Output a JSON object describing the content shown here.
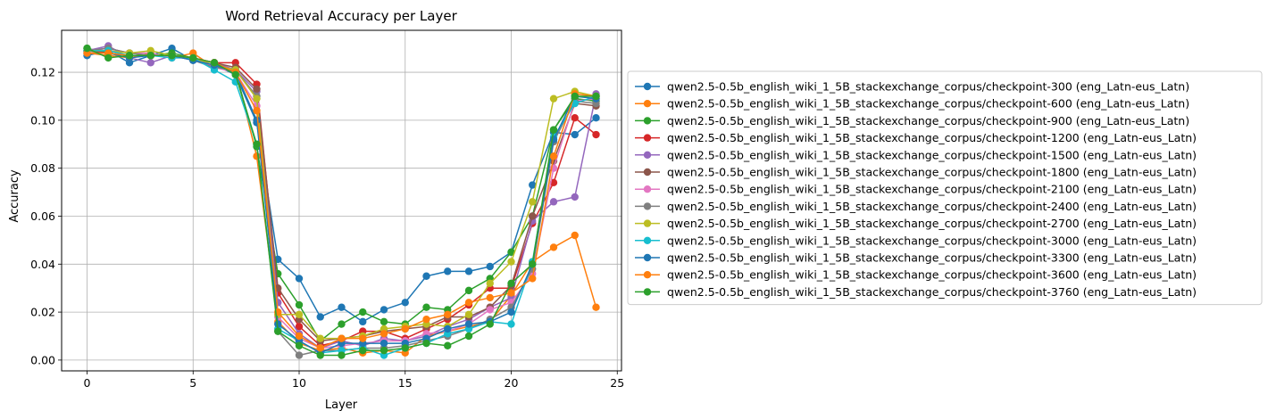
{
  "chart_data": {
    "type": "line",
    "title": "Word Retrieval Accuracy per Layer",
    "xlabel": "Layer",
    "ylabel": "Accuracy",
    "xlim": [
      -1.2,
      25.2
    ],
    "ylim": [
      -0.0045,
      0.1375
    ],
    "xticks": [
      0,
      5,
      10,
      15,
      20,
      25
    ],
    "yticks": [
      0.0,
      0.02,
      0.04,
      0.06,
      0.08,
      0.1,
      0.12
    ],
    "ytick_labels": [
      "0.00",
      "0.02",
      "0.04",
      "0.06",
      "0.08",
      "0.10",
      "0.12"
    ],
    "grid": true,
    "legend_position": "outside-right",
    "x": [
      0,
      1,
      2,
      3,
      4,
      5,
      6,
      7,
      8,
      9,
      10,
      11,
      12,
      13,
      14,
      15,
      16,
      17,
      18,
      19,
      20,
      21,
      22,
      23,
      24
    ],
    "series": [
      {
        "name": "qwen2.5-0.5b_english_wiki_1_5B_stackexchange_corpus/checkpoint-300 (eng_Latn-eus_Latn)",
        "color": "#1f77b4",
        "values": [
          0.127,
          0.129,
          0.124,
          0.127,
          0.13,
          0.125,
          0.123,
          0.119,
          0.099,
          0.042,
          0.034,
          0.018,
          0.022,
          0.016,
          0.021,
          0.024,
          0.035,
          0.037,
          0.037,
          0.039,
          0.045,
          0.073,
          0.095,
          0.094,
          0.101
        ]
      },
      {
        "name": "qwen2.5-0.5b_english_wiki_1_5B_stackexchange_corpus/checkpoint-600 (eng_Latn-eus_Latn)",
        "color": "#ff7f0e",
        "values": [
          0.128,
          0.127,
          0.126,
          0.128,
          0.126,
          0.128,
          0.122,
          0.121,
          0.085,
          0.016,
          0.007,
          0.004,
          0.005,
          0.003,
          0.004,
          0.003,
          0.01,
          0.012,
          0.014,
          0.016,
          0.027,
          0.041,
          0.047,
          0.052,
          0.022
        ]
      },
      {
        "name": "qwen2.5-0.5b_english_wiki_1_5B_stackexchange_corpus/checkpoint-900 (eng_Latn-eus_Latn)",
        "color": "#2ca02c",
        "values": [
          0.13,
          0.128,
          0.127,
          0.127,
          0.128,
          0.126,
          0.124,
          0.12,
          0.089,
          0.036,
          0.023,
          0.008,
          0.015,
          0.02,
          0.016,
          0.015,
          0.022,
          0.021,
          0.029,
          0.034,
          0.045,
          0.06,
          0.096,
          0.109,
          0.108
        ]
      },
      {
        "name": "qwen2.5-0.5b_english_wiki_1_5B_stackexchange_corpus/checkpoint-1200 (eng_Latn-eus_Latn)",
        "color": "#d62728",
        "values": [
          0.129,
          0.128,
          0.127,
          0.127,
          0.127,
          0.126,
          0.124,
          0.124,
          0.115,
          0.028,
          0.014,
          0.006,
          0.008,
          0.012,
          0.012,
          0.009,
          0.013,
          0.017,
          0.023,
          0.03,
          0.03,
          0.057,
          0.074,
          0.101,
          0.094
        ]
      },
      {
        "name": "qwen2.5-0.5b_english_wiki_1_5B_stackexchange_corpus/checkpoint-1500 (eng_Latn-eus_Latn)",
        "color": "#9467bd",
        "values": [
          0.129,
          0.131,
          0.126,
          0.124,
          0.127,
          0.126,
          0.124,
          0.121,
          0.112,
          0.024,
          0.011,
          0.005,
          0.008,
          0.006,
          0.009,
          0.008,
          0.01,
          0.014,
          0.017,
          0.022,
          0.026,
          0.058,
          0.066,
          0.068,
          0.111
        ]
      },
      {
        "name": "qwen2.5-0.5b_english_wiki_1_5B_stackexchange_corpus/checkpoint-1800 (eng_Latn-eus_Latn)",
        "color": "#8c564b",
        "values": [
          0.129,
          0.13,
          0.128,
          0.127,
          0.127,
          0.126,
          0.124,
          0.122,
          0.113,
          0.03,
          0.017,
          0.008,
          0.009,
          0.01,
          0.012,
          0.013,
          0.014,
          0.018,
          0.018,
          0.022,
          0.031,
          0.06,
          0.083,
          0.107,
          0.106
        ]
      },
      {
        "name": "qwen2.5-0.5b_english_wiki_1_5B_stackexchange_corpus/checkpoint-2100 (eng_Latn-eus_Latn)",
        "color": "#e377c2",
        "values": [
          0.129,
          0.13,
          0.128,
          0.128,
          0.126,
          0.126,
          0.122,
          0.12,
          0.106,
          0.018,
          0.009,
          0.005,
          0.006,
          0.007,
          0.008,
          0.008,
          0.011,
          0.012,
          0.015,
          0.021,
          0.024,
          0.036,
          0.08,
          0.108,
          0.109
        ]
      },
      {
        "name": "qwen2.5-0.5b_english_wiki_1_5B_stackexchange_corpus/checkpoint-2400 (eng_Latn-eus_Latn)",
        "color": "#7f7f7f",
        "values": [
          0.129,
          0.13,
          0.128,
          0.127,
          0.127,
          0.125,
          0.122,
          0.121,
          0.11,
          0.012,
          0.002,
          0.004,
          0.004,
          0.005,
          0.005,
          0.006,
          0.008,
          0.01,
          0.013,
          0.017,
          0.022,
          0.038,
          0.091,
          0.108,
          0.107
        ]
      },
      {
        "name": "qwen2.5-0.5b_english_wiki_1_5B_stackexchange_corpus/checkpoint-2700 (eng_Latn-eus_Latn)",
        "color": "#bcbd22",
        "values": [
          0.129,
          0.129,
          0.128,
          0.129,
          0.127,
          0.126,
          0.123,
          0.121,
          0.109,
          0.019,
          0.019,
          0.009,
          0.009,
          0.01,
          0.013,
          0.014,
          0.015,
          0.014,
          0.019,
          0.032,
          0.041,
          0.066,
          0.109,
          0.112,
          0.11
        ]
      },
      {
        "name": "qwen2.5-0.5b_english_wiki_1_5B_stackexchange_corpus/checkpoint-3000 (eng_Latn-eus_Latn)",
        "color": "#17becf",
        "values": [
          0.129,
          0.129,
          0.127,
          0.127,
          0.126,
          0.126,
          0.121,
          0.116,
          0.09,
          0.013,
          0.008,
          0.003,
          0.004,
          0.005,
          0.002,
          0.005,
          0.007,
          0.011,
          0.013,
          0.016,
          0.015,
          0.041,
          0.093,
          0.107,
          0.11
        ]
      },
      {
        "name": "qwen2.5-0.5b_english_wiki_1_5B_stackexchange_corpus/checkpoint-3300 (eng_Latn-eus_Latn)",
        "color": "#1f77b4",
        "values": [
          0.128,
          0.128,
          0.126,
          0.127,
          0.127,
          0.125,
          0.123,
          0.12,
          0.1,
          0.015,
          0.008,
          0.003,
          0.007,
          0.007,
          0.007,
          0.007,
          0.009,
          0.013,
          0.015,
          0.016,
          0.02,
          0.04,
          0.092,
          0.11,
          0.109
        ]
      },
      {
        "name": "qwen2.5-0.5b_english_wiki_1_5B_stackexchange_corpus/checkpoint-3600 (eng_Latn-eus_Latn)",
        "color": "#ff7f0e",
        "values": [
          0.128,
          0.128,
          0.127,
          0.127,
          0.127,
          0.126,
          0.124,
          0.12,
          0.104,
          0.02,
          0.01,
          0.005,
          0.009,
          0.009,
          0.011,
          0.013,
          0.017,
          0.019,
          0.024,
          0.026,
          0.028,
          0.034,
          0.085,
          0.111,
          0.11
        ]
      },
      {
        "name": "qwen2.5-0.5b_english_wiki_1_5B_stackexchange_corpus/checkpoint-3760 (eng_Latn-eus_Latn)",
        "color": "#2ca02c",
        "values": [
          0.13,
          0.126,
          0.127,
          0.127,
          0.127,
          0.126,
          0.124,
          0.119,
          0.09,
          0.012,
          0.006,
          0.002,
          0.002,
          0.004,
          0.004,
          0.005,
          0.007,
          0.006,
          0.01,
          0.015,
          0.032,
          0.04,
          0.096,
          0.11,
          0.11
        ]
      }
    ]
  }
}
